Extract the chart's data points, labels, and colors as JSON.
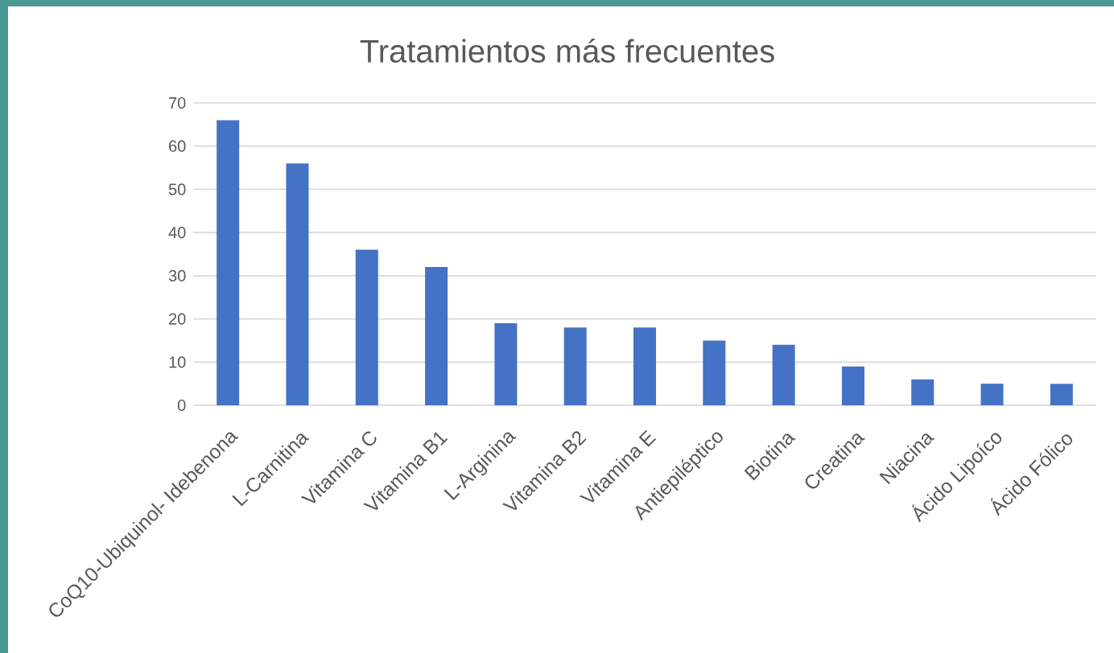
{
  "chart_data": {
    "type": "bar",
    "title": "Tratamientos más frecuentes",
    "categories": [
      "CoQ10-Ubiquinol- Idebenona",
      "L-Carnitina",
      "Vitamina C",
      "Vitamina B1",
      "L-Arginina",
      "Vitamina B2",
      "Vitamina E",
      "Antiepiléptico",
      "Biotina",
      "Creatina",
      "Niacina",
      "Ácido Lipoíco",
      "Ácido Fólico"
    ],
    "values": [
      66,
      56,
      36,
      32,
      19,
      18,
      18,
      15,
      14,
      9,
      6,
      5,
      5
    ],
    "color": "#4472c4",
    "ylim": [
      0,
      70
    ],
    "yticks": [
      0,
      10,
      20,
      30,
      40,
      50,
      60,
      70
    ],
    "grid": "y"
  }
}
